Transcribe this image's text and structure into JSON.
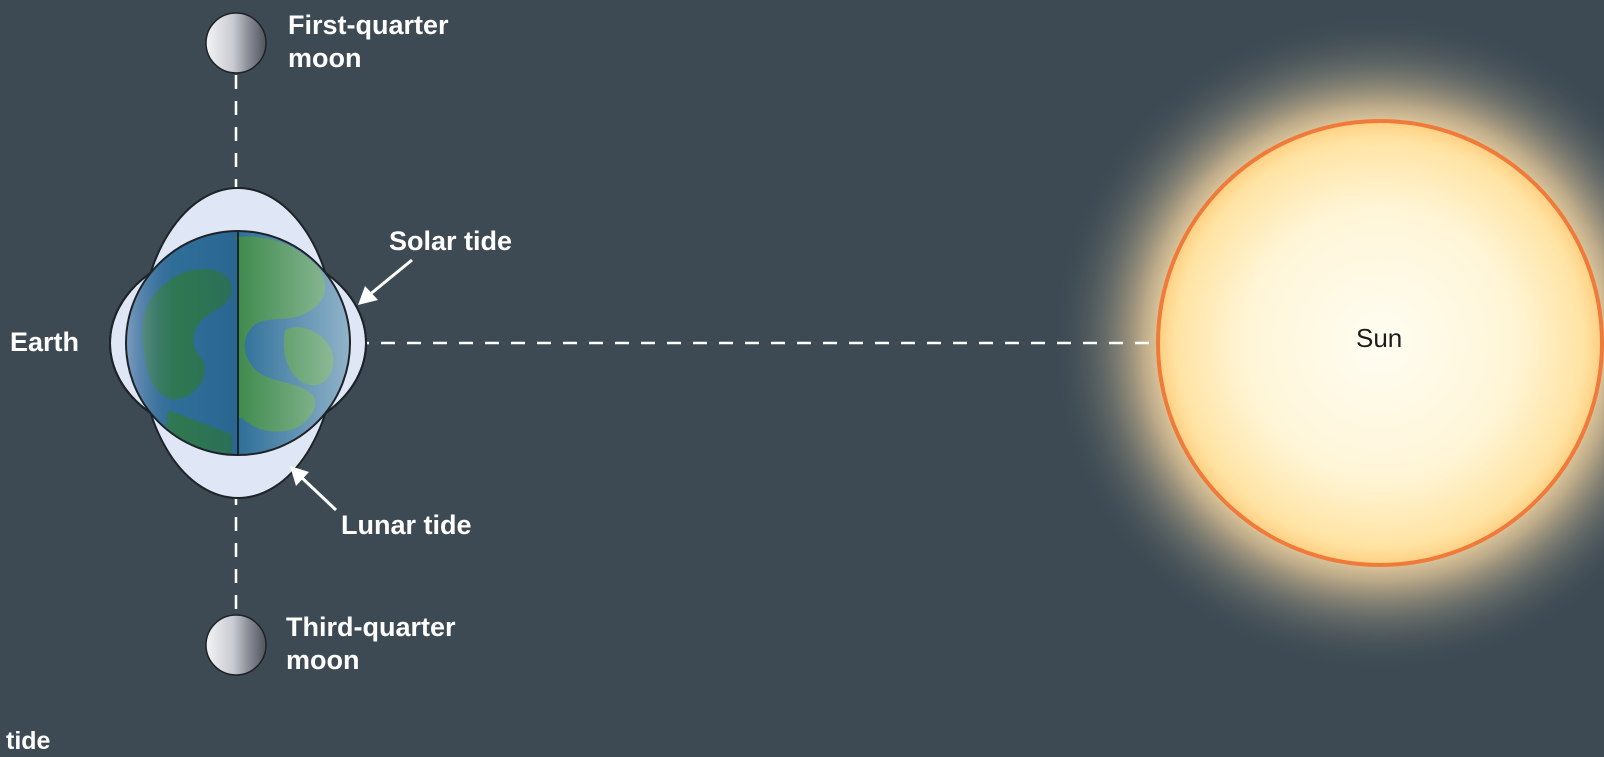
{
  "labels": {
    "first_quarter_line1": "First-quarter",
    "first_quarter_line2": "moon",
    "third_quarter_line1": "Third-quarter",
    "third_quarter_line2": "moon",
    "earth": "Earth",
    "solar_tide": "Solar tide",
    "lunar_tide": "Lunar tide",
    "sun": "Sun",
    "bottom_fragment": "tide"
  },
  "colors": {
    "background": "#3d4a53",
    "tide_bulge": "#dfe6f5",
    "ocean": "#2e6f99",
    "land": "#2f7a4a",
    "sun_core": "#fffbe8",
    "sun_edge": "#ffd889",
    "sun_rim": "#f07a3a",
    "label": "#ffffff"
  }
}
